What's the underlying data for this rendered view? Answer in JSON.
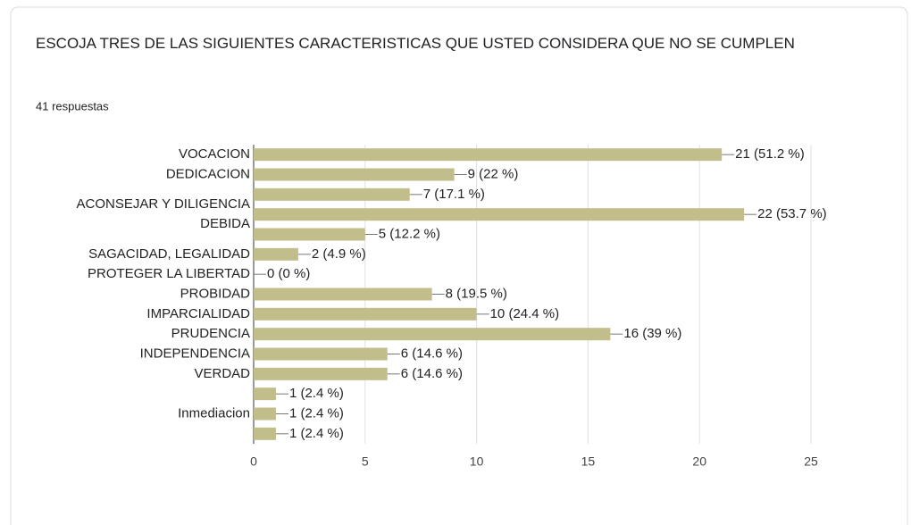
{
  "chart_data": {
    "type": "bar",
    "orientation": "horizontal",
    "title": "ESCOJA TRES DE LAS SIGUIENTES CARACTERISTICAS QUE USTED CONSIDERA QUE NO SE CUMPLEN",
    "subtitle": "41 respuestas",
    "categories": [
      "VOCACION",
      "DEDICACION",
      null,
      "ACONSEJAR Y DILIGENCIA DEBIDA",
      null,
      "SAGACIDAD, LEGALIDAD",
      "PROTEGER LA LIBERTAD",
      "PROBIDAD",
      "IMPARCIALIDAD",
      "PRUDENCIA",
      "INDEPENDENCIA",
      "VERDAD",
      null,
      "Inmediacion",
      null
    ],
    "values": [
      21,
      9,
      7,
      22,
      5,
      2,
      0,
      8,
      10,
      16,
      6,
      6,
      1,
      1,
      1
    ],
    "value_labels": [
      "21 (51.2 %)",
      "9 (22 %)",
      "7 (17.1 %)",
      "22 (53.7 %)",
      "5 (12.2 %)",
      "2 (4.9 %)",
      "0 (0 %)",
      "8 (19.5 %)",
      "10 (24.4 %)",
      "16 (39 %)",
      "6 (14.6 %)",
      "6 (14.6 %)",
      "1 (2.4 %)",
      "1 (2.4 %)",
      "1 (2.4 %)"
    ],
    "color": "#c2be8c",
    "xlim": [
      0,
      25
    ],
    "xticks": [
      0,
      5,
      10,
      15,
      20,
      25
    ],
    "grid": true
  }
}
